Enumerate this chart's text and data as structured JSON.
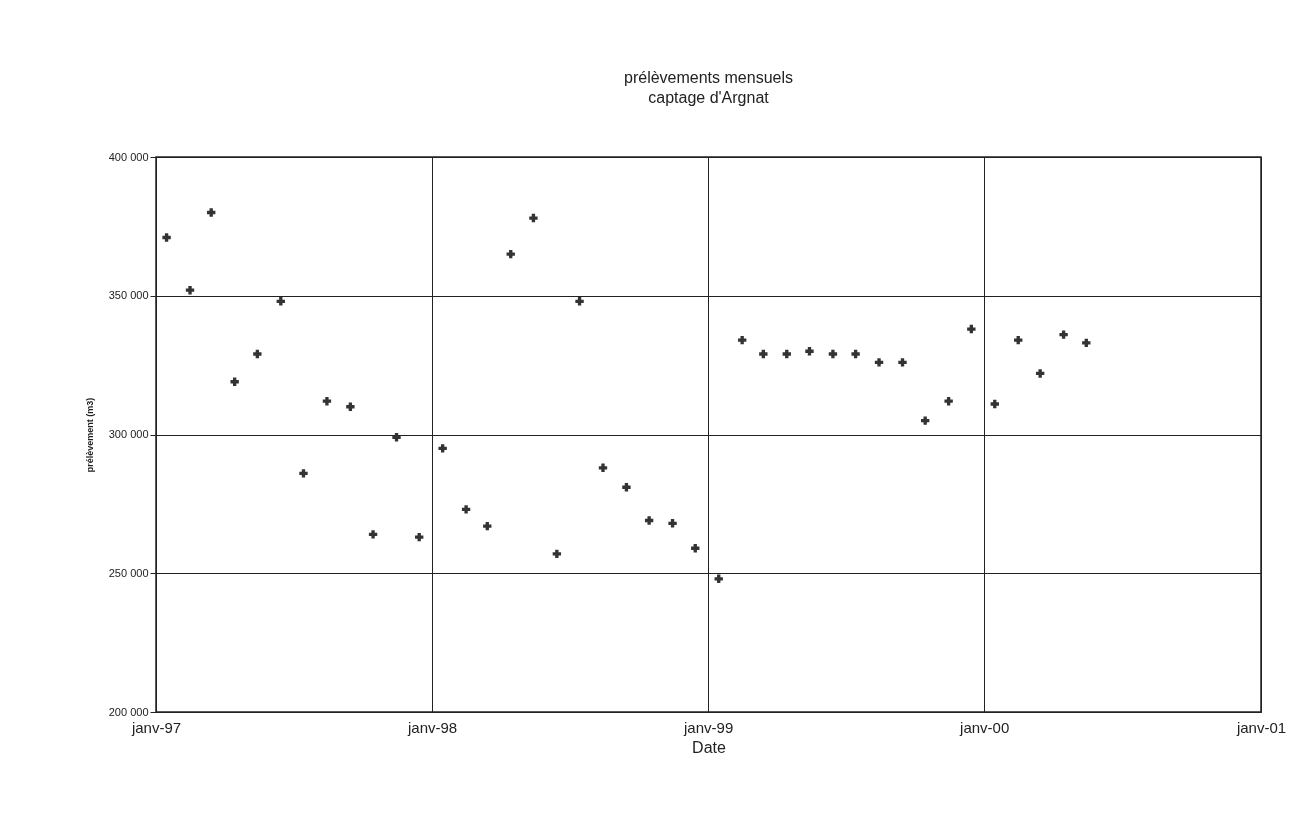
{
  "chart_data": {
    "type": "scatter",
    "title": "prélèvements mensuels",
    "subtitle": "captage d'Argnat",
    "xlabel": "Date",
    "ylabel": "prélèvement (m3)",
    "x": [
      "1997-01-15",
      "1997-02-15",
      "1997-03-15",
      "1997-04-15",
      "1997-05-15",
      "1997-06-15",
      "1997-07-15",
      "1997-08-15",
      "1997-09-15",
      "1997-10-15",
      "1997-11-15",
      "1997-12-15",
      "1998-01-15",
      "1998-02-15",
      "1998-03-15",
      "1998-04-15",
      "1998-05-15",
      "1998-06-15",
      "1998-07-15",
      "1998-08-15",
      "1998-09-15",
      "1998-10-15",
      "1998-11-15",
      "1998-12-15",
      "1999-01-15",
      "1999-02-15",
      "1999-03-15",
      "1999-04-15",
      "1999-05-15",
      "1999-06-15",
      "1999-07-15",
      "1999-08-15",
      "1999-09-15",
      "1999-10-15",
      "1999-11-15",
      "1999-12-15",
      "2000-01-15",
      "2000-02-15",
      "2000-03-15",
      "2000-04-15",
      "2000-05-15"
    ],
    "series": [
      {
        "color": "#333333",
        "values": [
          371000,
          352000,
          380000,
          319000,
          329000,
          348000,
          286000,
          312000,
          310000,
          264000,
          299000,
          263000,
          295000,
          273000,
          267000,
          365000,
          378000,
          257000,
          348000,
          288000,
          281000,
          269000,
          268000,
          259000,
          248000,
          334000,
          329000,
          329000,
          330000,
          329000,
          329000,
          326000,
          326000,
          305000,
          312000,
          338000,
          311000,
          334000,
          322000,
          336000,
          333000
        ]
      }
    ],
    "xlim": [
      "1997-01",
      "2001-01"
    ],
    "xticks": [
      {
        "value": "1997-01",
        "label": "janv-97"
      },
      {
        "value": "1998-01",
        "label": "janv-98"
      },
      {
        "value": "1999-01",
        "label": "janv-99"
      },
      {
        "value": "2000-01",
        "label": "janv-00"
      },
      {
        "value": "2001-01",
        "label": "janv-01"
      }
    ],
    "ylim": [
      200000,
      400000
    ],
    "yticks": [
      {
        "value": 200000,
        "label": "200 000"
      },
      {
        "value": 250000,
        "label": "250 000"
      },
      {
        "value": 300000,
        "label": "300 000"
      },
      {
        "value": 350000,
        "label": "350 000"
      },
      {
        "value": 400000,
        "label": "400 000"
      }
    ],
    "grid": true,
    "marker": "cross"
  }
}
